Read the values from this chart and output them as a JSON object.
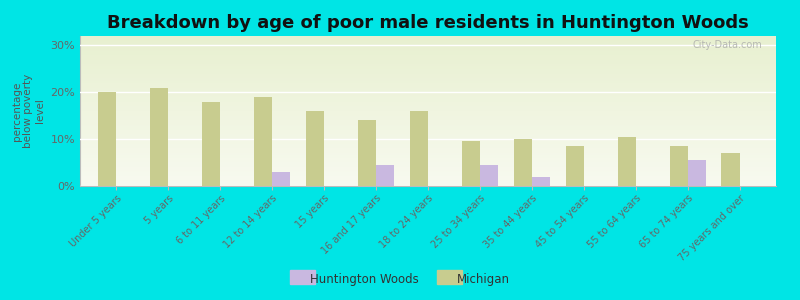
{
  "title": "Breakdown by age of poor male residents in Huntington Woods",
  "ylabel": "percentage\nbelow poverty\nlevel",
  "categories": [
    "Under 5 years",
    "5 years",
    "6 to 11 years",
    "12 to 14 years",
    "15 years",
    "16 and 17 years",
    "18 to 24 years",
    "25 to 34 years",
    "35 to 44 years",
    "45 to 54 years",
    "55 to 64 years",
    "65 to 74 years",
    "75 years and over"
  ],
  "huntington_woods": [
    0,
    0,
    0,
    3.0,
    0,
    4.5,
    0,
    4.5,
    2.0,
    0,
    0,
    5.5,
    0
  ],
  "michigan": [
    20.0,
    21.0,
    18.0,
    19.0,
    16.0,
    14.0,
    16.0,
    9.5,
    10.0,
    8.5,
    10.5,
    8.5,
    7.0
  ],
  "hw_color": "#c9b8e0",
  "mi_color": "#c8cc8f",
  "background_color": "#00e5e5",
  "plot_bg_top": "#e8f0d0",
  "plot_bg_bottom": "#f8faf0",
  "ylim": [
    0,
    32
  ],
  "yticks": [
    0,
    10,
    20,
    30
  ],
  "ytick_labels": [
    "0%",
    "10%",
    "20%",
    "30%"
  ],
  "title_fontsize": 13,
  "bar_width": 0.35,
  "watermark": "City-Data.com"
}
